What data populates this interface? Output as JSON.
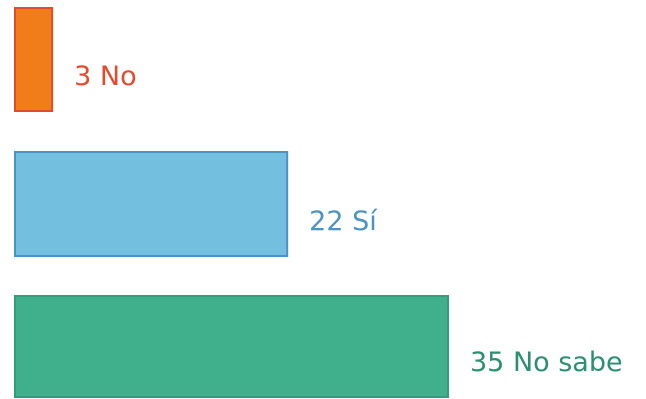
{
  "chart_data": {
    "type": "bar",
    "orientation": "horizontal",
    "grid": false,
    "legend": "none",
    "xlim": [
      0,
      35
    ],
    "bars": [
      {
        "value": 3,
        "label": "No",
        "value_text": "3",
        "category_text": "No",
        "fill": "#f07d1a",
        "stroke": "#e64a2e",
        "text_color": "#e64a2e"
      },
      {
        "value": 22,
        "label": "Sí",
        "value_text": "22",
        "category_text": "Sí",
        "fill": "#73bfe0",
        "stroke": "#4a93c4",
        "text_color": "#4a93c4"
      },
      {
        "value": 35,
        "label": "No sabe",
        "value_text": "35",
        "category_text": "No sabe",
        "fill": "#40b08c",
        "stroke": "#2f9e7a",
        "text_color": "#2a9070"
      }
    ]
  }
}
